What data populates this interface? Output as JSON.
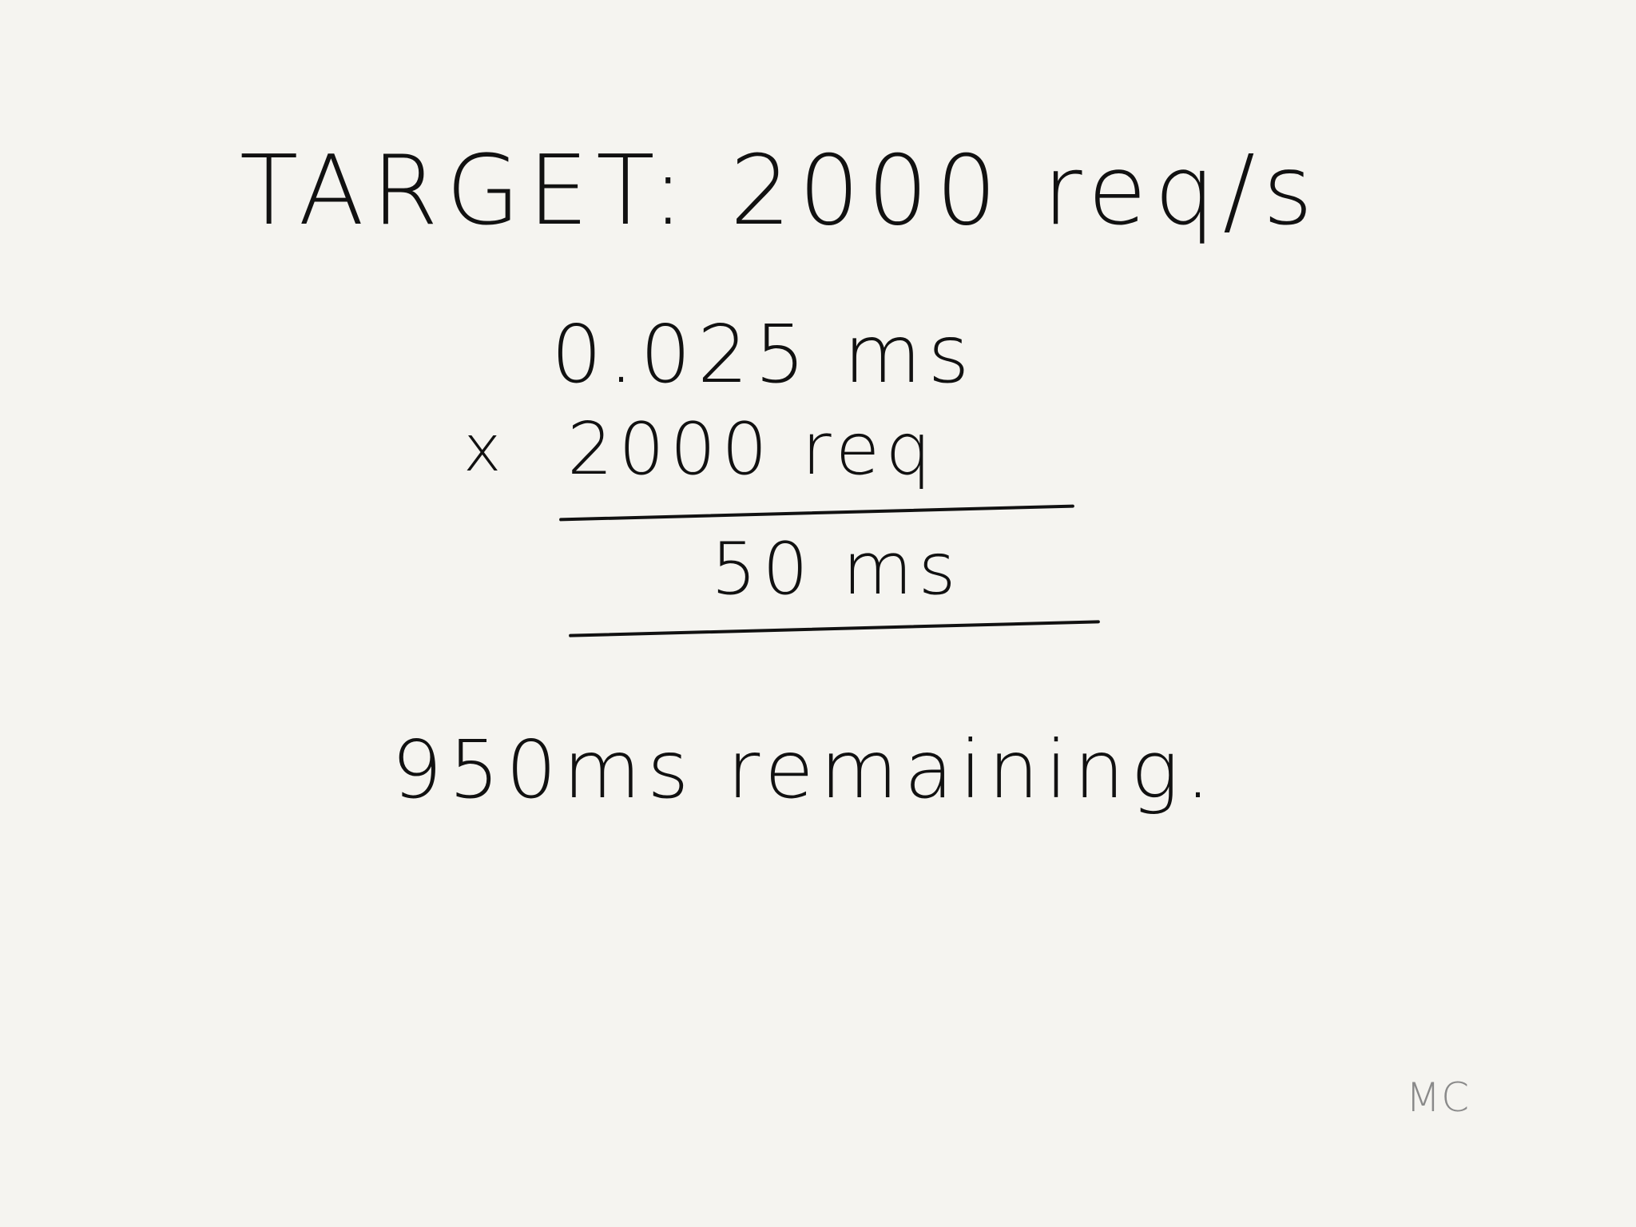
{
  "note": {
    "line1": "TARGET: 2000 req/s",
    "multiplicand": "0.025 ms",
    "multiplier_sign": "x",
    "multiplier": "2000 req",
    "product": "50 ms",
    "conclusion": "950ms remaining.",
    "initials": "MC"
  },
  "colors": {
    "paper": "#f5f4f0",
    "ink": "#111111",
    "initials": "#8a8a8a"
  }
}
